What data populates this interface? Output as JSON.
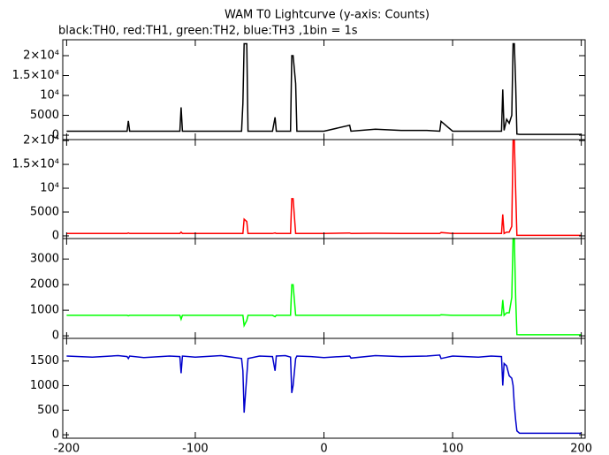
{
  "chart_data": [
    {
      "type": "line",
      "title": "WAM T0 Lightcurve (y-axis: Counts)",
      "subtitle": "black:TH0, red:TH1, green:TH2, blue:TH3 ,1bin = 1s",
      "x": [
        -200,
        -180,
        -160,
        -153,
        -152,
        -151,
        -140,
        -120,
        -112,
        -111,
        -110,
        -100,
        -80,
        -64,
        -63,
        -62,
        -60,
        -59,
        -50,
        -40,
        -38,
        -37,
        -30,
        -26,
        -25,
        -24,
        -22,
        -21,
        -10,
        0,
        20,
        21,
        40,
        60,
        80,
        90,
        91,
        100,
        120,
        130,
        138,
        139,
        140,
        142,
        144,
        146,
        147,
        148,
        149,
        150,
        152,
        160,
        180,
        200
      ],
      "series": [
        {
          "name": "TH0",
          "color": "#000000",
          "values": [
            1000,
            1000,
            1000,
            1000,
            3600,
            1000,
            1000,
            1000,
            1000,
            7000,
            1000,
            1000,
            1000,
            1000,
            8000,
            23000,
            23000,
            1000,
            1000,
            1000,
            4500,
            1000,
            1000,
            1000,
            20000,
            20000,
            13000,
            1000,
            1000,
            1000,
            2500,
            1000,
            1500,
            1200,
            1200,
            1000,
            3500,
            1000,
            1000,
            1000,
            1000,
            11500,
            1200,
            4000,
            3000,
            5000,
            23000,
            23000,
            13000,
            300,
            200,
            200,
            200,
            200
          ]
        }
      ],
      "xlim": [
        -203,
        203
      ],
      "xticks": [
        -200,
        -100,
        0,
        100,
        200
      ],
      "ylim": [
        -1100,
        24000
      ],
      "yticks": [
        0,
        5000,
        {
          "value": 10000,
          "label": "10⁴"
        },
        {
          "value": 15000,
          "label": "1.5×10⁴"
        },
        {
          "value": 20000,
          "label": "2×10⁴"
        }
      ]
    },
    {
      "type": "line",
      "x": [
        -200,
        -180,
        -160,
        -153,
        -152,
        -151,
        -140,
        -120,
        -112,
        -111,
        -110,
        -100,
        -80,
        -64,
        -63,
        -62,
        -60,
        -59,
        -50,
        -40,
        -38,
        -37,
        -30,
        -26,
        -25,
        -24,
        -22,
        -21,
        -10,
        0,
        20,
        21,
        40,
        60,
        80,
        90,
        91,
        100,
        120,
        130,
        138,
        139,
        140,
        142,
        144,
        146,
        147,
        148,
        149,
        150,
        152,
        160,
        180,
        200
      ],
      "series": [
        {
          "name": "TH1",
          "color": "#ff0000",
          "values": [
            500,
            500,
            500,
            500,
            600,
            500,
            500,
            500,
            500,
            800,
            500,
            500,
            500,
            500,
            500,
            3500,
            3000,
            500,
            500,
            500,
            600,
            500,
            500,
            500,
            7800,
            7800,
            500,
            500,
            500,
            500,
            600,
            500,
            550,
            500,
            500,
            500,
            700,
            500,
            500,
            500,
            500,
            4500,
            500,
            800,
            800,
            2000,
            20000,
            20000,
            9500,
            100,
            100,
            100,
            100,
            100
          ]
        }
      ],
      "xlim": [
        -203,
        203
      ],
      "xticks": [
        -200,
        -100,
        0,
        100,
        200
      ],
      "ylim": [
        -560,
        20200
      ],
      "yticks": [
        0,
        5000,
        {
          "value": 10000,
          "label": "10⁴"
        },
        {
          "value": 15000,
          "label": "1.5×10⁴"
        },
        {
          "value": 20000,
          "label": "2×10⁴"
        }
      ]
    },
    {
      "type": "line",
      "x": [
        -200,
        -180,
        -160,
        -153,
        -152,
        -151,
        -140,
        -120,
        -112,
        -111,
        -110,
        -100,
        -80,
        -64,
        -63,
        -62,
        -60,
        -59,
        -50,
        -40,
        -38,
        -37,
        -30,
        -26,
        -25,
        -24,
        -22,
        -21,
        -10,
        0,
        20,
        21,
        40,
        60,
        80,
        90,
        91,
        100,
        120,
        130,
        138,
        139,
        140,
        142,
        144,
        146,
        147,
        148,
        149,
        150,
        152,
        160,
        180,
        200
      ],
      "series": [
        {
          "name": "TH2",
          "color": "#00ff00",
          "values": [
            800,
            800,
            800,
            800,
            780,
            800,
            800,
            800,
            800,
            650,
            800,
            800,
            800,
            800,
            800,
            400,
            600,
            800,
            800,
            800,
            750,
            800,
            800,
            800,
            2000,
            2000,
            800,
            800,
            800,
            800,
            800,
            800,
            800,
            800,
            800,
            800,
            820,
            800,
            800,
            800,
            800,
            1400,
            800,
            900,
            900,
            1500,
            3800,
            3800,
            1500,
            50,
            40,
            40,
            40,
            40
          ]
        }
      ],
      "xlim": [
        -203,
        203
      ],
      "xticks": [
        -200,
        -100,
        0,
        100,
        200
      ],
      "ylim": [
        -100,
        3800
      ],
      "yticks": [
        0,
        1000,
        2000,
        3000
      ]
    },
    {
      "type": "line",
      "x": [
        -200,
        -180,
        -160,
        -153,
        -152,
        -151,
        -140,
        -120,
        -112,
        -111,
        -110,
        -100,
        -80,
        -64,
        -63,
        -62,
        -60,
        -59,
        -50,
        -40,
        -38,
        -37,
        -30,
        -26,
        -25,
        -24,
        -22,
        -21,
        -10,
        0,
        20,
        21,
        40,
        60,
        80,
        90,
        91,
        100,
        120,
        130,
        138,
        139,
        140,
        142,
        144,
        146,
        147,
        148,
        149,
        150,
        152,
        160,
        180,
        200
      ],
      "series": [
        {
          "name": "TH3",
          "color": "#0000cc",
          "values": [
            1600,
            1580,
            1610,
            1590,
            1550,
            1600,
            1570,
            1600,
            1590,
            1250,
            1600,
            1580,
            1610,
            1550,
            1300,
            450,
            1200,
            1550,
            1600,
            1590,
            1300,
            1600,
            1610,
            1580,
            850,
            1000,
            1550,
            1600,
            1590,
            1570,
            1600,
            1560,
            1610,
            1590,
            1600,
            1620,
            1550,
            1600,
            1580,
            1600,
            1590,
            1000,
            1450,
            1400,
            1200,
            1150,
            1000,
            600,
            300,
            80,
            30,
            30,
            30,
            30
          ]
        }
      ],
      "xlim": [
        -203,
        203
      ],
      "xticks": [
        -200,
        -100,
        0,
        100,
        200
      ],
      "ylim": [
        -70,
        1960
      ],
      "yticks": [
        0,
        500,
        1000,
        1500
      ]
    }
  ]
}
